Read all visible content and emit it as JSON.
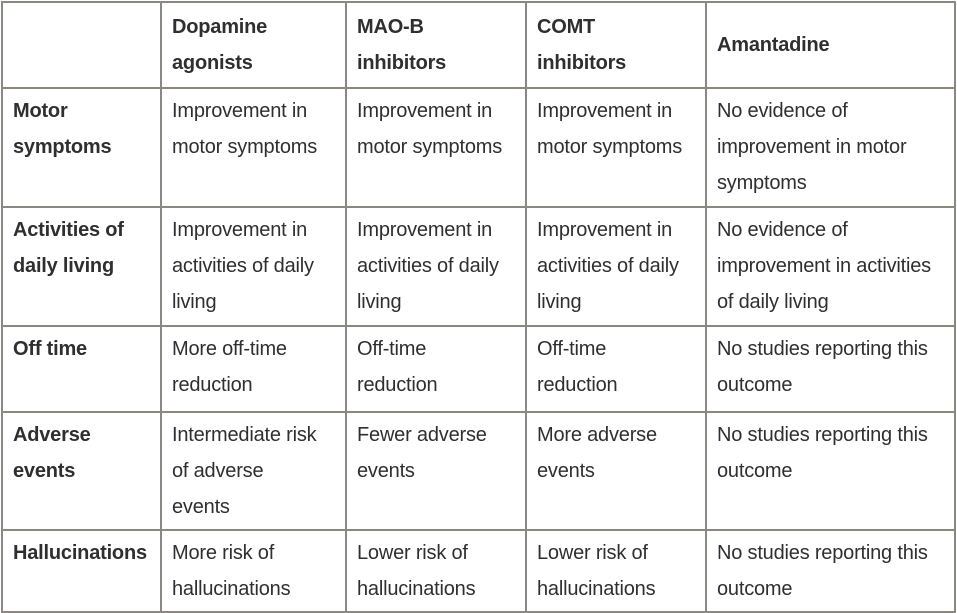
{
  "table": {
    "description": "Treatment comparison summary table",
    "column_headers": [
      "",
      "Dopamine agonists",
      "MAO-B inhibitors",
      "COMT inhibitors",
      "Amantadine"
    ],
    "rows": [
      {
        "label": "Motor symptoms",
        "cells": [
          "Improvement in motor symptoms",
          "Improvement in motor symptoms",
          "Improvement in motor symptoms",
          "No evidence of improvement in motor symptoms"
        ]
      },
      {
        "label": "Activities of daily living",
        "cells": [
          "Improvement in activities of daily living",
          "Improvement in activities of daily living",
          "Improvement in activities of daily living",
          "No evidence of improvement in activities of daily living"
        ]
      },
      {
        "label": "Off time",
        "cells": [
          "More off-time reduction",
          "Off-time reduction",
          "Off-time reduction",
          "No studies reporting this outcome"
        ]
      },
      {
        "label": "Adverse events",
        "cells": [
          "Intermediate risk of adverse events",
          "Fewer adverse events",
          "More adverse events",
          "No studies reporting this outcome"
        ]
      },
      {
        "label": "Hallucinations",
        "cells": [
          "More risk of hallucinations",
          "Lower risk of hallucinations",
          "Lower risk of hallucinations",
          "No studies reporting this outcome"
        ]
      }
    ],
    "colors": {
      "border": "#8d8781",
      "text": "#2f2f2f",
      "background": "#ffffff"
    }
  }
}
